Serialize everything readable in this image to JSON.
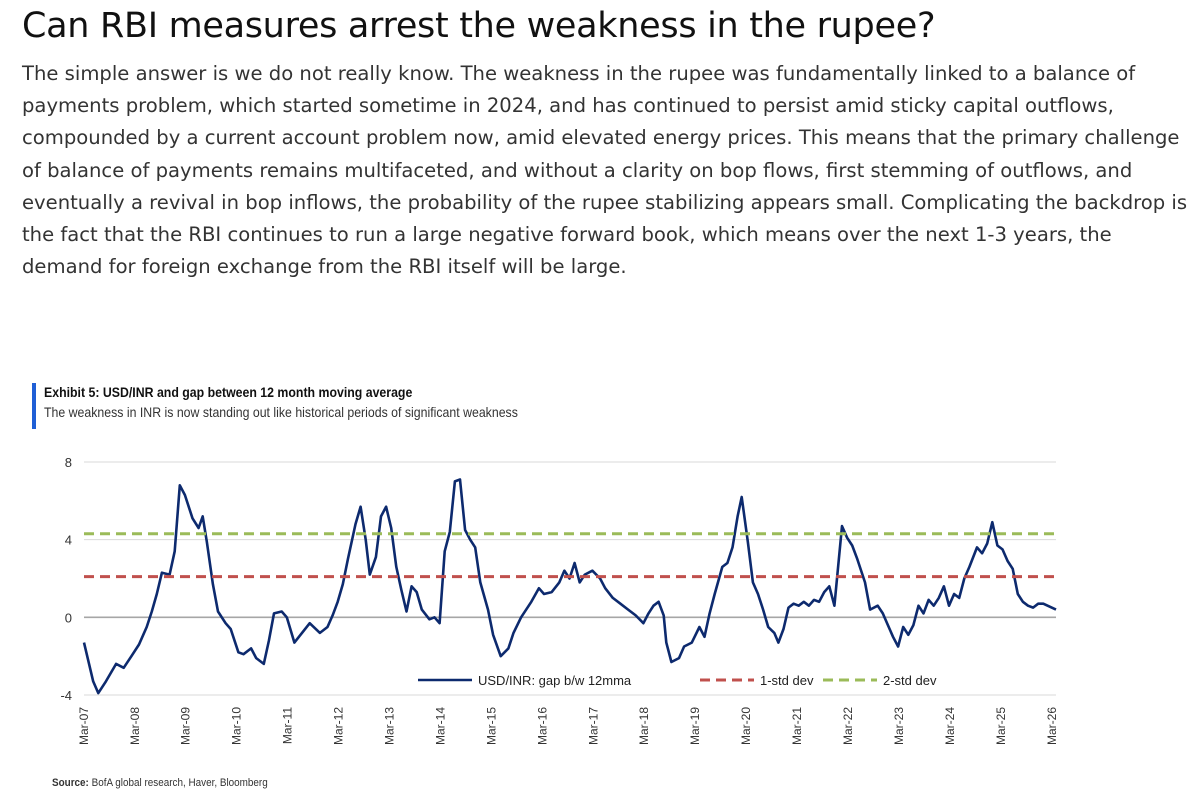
{
  "headline": "Can RBI measures arrest the weakness in the rupee?",
  "article": "The simple answer is we do not really know. The weakness in the rupee was fundamentally linked to a balance of payments problem, which started sometime in 2024, and has continued to persist amid sticky capital outflows, compounded by a current account problem now, amid elevated energy prices. This means that the primary challenge of balance of payments remains multifaceted, and without a clarity on bop flows, first stemming of outflows, and eventually a revival in bop inflows, the probability of the rupee stabilizing appears small. Complicating the backdrop is the fact that the RBI continues to run a large negative forward book, which means over the next 1-3 years, the demand for foreign exchange from the RBI itself will be large.",
  "exhibit": {
    "title": "Exhibit 5: USD/INR and gap between 12 month moving average",
    "subtitle": "The weakness in INR is now standing out like historical periods of significant weakness"
  },
  "source": {
    "label": "Source:",
    "text": "BofA global research, Haver, Bloomberg"
  },
  "colors": {
    "series": "#0d2a6e",
    "std1": "#c0504d",
    "std2": "#9bbb59",
    "accent": "#1f5fd6",
    "grid": "#d9d9d9",
    "zero_line": "#a6a6a6"
  },
  "chart_data": {
    "type": "line",
    "title": "Exhibit 5: USD/INR and gap between 12 month moving average",
    "xlabel": "",
    "ylabel": "",
    "ylim": [
      -4,
      8
    ],
    "yticks": [
      -4,
      0,
      4,
      8
    ],
    "grid": "horizontal",
    "legend_position": "bottom-right",
    "xticks": [
      "Mar-07",
      "Mar-08",
      "Mar-09",
      "Mar-10",
      "Mar-11",
      "Mar-12",
      "Mar-13",
      "Mar-14",
      "Mar-15",
      "Mar-16",
      "Mar-17",
      "Mar-18",
      "Mar-19",
      "Mar-20",
      "Mar-21",
      "Mar-22",
      "Mar-23",
      "Mar-24",
      "Mar-25",
      "Mar-26"
    ],
    "xtick_display": [
      "Mar-07",
      "Mar-08",
      "Mar-09",
      "Mar-10",
      "Mar-11",
      "Mar-12",
      "Mar-13",
      "Mar-14",
      "Mar-15",
      "Mar-16",
      "Mar-17",
      "Mar-18",
      "Mar-19",
      "Mar-20",
      "Mar-21",
      "Mar-22",
      "Mar-23",
      "Mar-24",
      "Mar-25",
      "Mar-26"
    ],
    "xlim": [
      2007.17,
      2026.25
    ],
    "series": [
      {
        "name": "USD/INR: gap b/w 12mma",
        "style": "solid",
        "points": [
          [
            2007.17,
            -1.3
          ],
          [
            2007.35,
            -3.3
          ],
          [
            2007.45,
            -3.9
          ],
          [
            2007.6,
            -3.3
          ],
          [
            2007.8,
            -2.4
          ],
          [
            2007.95,
            -2.6
          ],
          [
            2008.1,
            -2.0
          ],
          [
            2008.25,
            -1.4
          ],
          [
            2008.4,
            -0.5
          ],
          [
            2008.5,
            0.3
          ],
          [
            2008.6,
            1.2
          ],
          [
            2008.7,
            2.3
          ],
          [
            2008.85,
            2.2
          ],
          [
            2008.95,
            3.4
          ],
          [
            2009.05,
            6.8
          ],
          [
            2009.15,
            6.3
          ],
          [
            2009.3,
            5.1
          ],
          [
            2009.42,
            4.6
          ],
          [
            2009.5,
            5.2
          ],
          [
            2009.58,
            3.9
          ],
          [
            2009.7,
            1.7
          ],
          [
            2009.8,
            0.3
          ],
          [
            2009.95,
            -0.3
          ],
          [
            2010.05,
            -0.6
          ],
          [
            2010.2,
            -1.8
          ],
          [
            2010.3,
            -1.9
          ],
          [
            2010.45,
            -1.6
          ],
          [
            2010.55,
            -2.1
          ],
          [
            2010.7,
            -2.4
          ],
          [
            2010.8,
            -1.2
          ],
          [
            2010.9,
            0.2
          ],
          [
            2011.05,
            0.3
          ],
          [
            2011.15,
            0.0
          ],
          [
            2011.3,
            -1.3
          ],
          [
            2011.45,
            -0.8
          ],
          [
            2011.6,
            -0.3
          ],
          [
            2011.8,
            -0.8
          ],
          [
            2011.95,
            -0.5
          ],
          [
            2012.05,
            0.1
          ],
          [
            2012.15,
            0.8
          ],
          [
            2012.25,
            1.7
          ],
          [
            2012.35,
            3.0
          ],
          [
            2012.5,
            4.8
          ],
          [
            2012.6,
            5.7
          ],
          [
            2012.7,
            4.0
          ],
          [
            2012.78,
            2.2
          ],
          [
            2012.9,
            3.1
          ],
          [
            2013.0,
            5.2
          ],
          [
            2013.1,
            5.7
          ],
          [
            2013.2,
            4.6
          ],
          [
            2013.3,
            2.6
          ],
          [
            2013.4,
            1.4
          ],
          [
            2013.5,
            0.3
          ],
          [
            2013.6,
            1.6
          ],
          [
            2013.7,
            1.3
          ],
          [
            2013.8,
            0.4
          ],
          [
            2013.95,
            -0.1
          ],
          [
            2014.05,
            0.0
          ],
          [
            2014.15,
            -0.3
          ],
          [
            2014.25,
            3.4
          ],
          [
            2014.35,
            4.4
          ],
          [
            2014.45,
            7.0
          ],
          [
            2014.55,
            7.1
          ],
          [
            2014.65,
            4.5
          ],
          [
            2014.75,
            4.0
          ],
          [
            2014.85,
            3.6
          ],
          [
            2014.95,
            1.8
          ],
          [
            2015.1,
            0.4
          ],
          [
            2015.2,
            -0.9
          ],
          [
            2015.35,
            -2.0
          ],
          [
            2015.5,
            -1.6
          ],
          [
            2015.6,
            -0.8
          ],
          [
            2015.75,
            0.0
          ],
          [
            2015.95,
            0.8
          ],
          [
            2016.1,
            1.5
          ],
          [
            2016.2,
            1.2
          ],
          [
            2016.35,
            1.3
          ],
          [
            2016.5,
            1.8
          ],
          [
            2016.6,
            2.4
          ],
          [
            2016.7,
            2.0
          ],
          [
            2016.8,
            2.8
          ],
          [
            2016.9,
            1.8
          ],
          [
            2017.0,
            2.2
          ],
          [
            2017.15,
            2.4
          ],
          [
            2017.3,
            2.0
          ],
          [
            2017.4,
            1.5
          ],
          [
            2017.55,
            1.0
          ],
          [
            2017.7,
            0.7
          ],
          [
            2017.85,
            0.4
          ],
          [
            2018.0,
            0.1
          ],
          [
            2018.15,
            -0.3
          ],
          [
            2018.25,
            0.2
          ],
          [
            2018.35,
            0.6
          ],
          [
            2018.45,
            0.8
          ],
          [
            2018.55,
            0.1
          ],
          [
            2018.6,
            -1.3
          ],
          [
            2018.7,
            -2.3
          ],
          [
            2018.85,
            -2.1
          ],
          [
            2018.95,
            -1.5
          ],
          [
            2019.1,
            -1.3
          ],
          [
            2019.25,
            -0.5
          ],
          [
            2019.35,
            -1.0
          ],
          [
            2019.45,
            0.2
          ],
          [
            2019.55,
            1.2
          ],
          [
            2019.7,
            2.6
          ],
          [
            2019.8,
            2.8
          ],
          [
            2019.9,
            3.6
          ],
          [
            2020.0,
            5.2
          ],
          [
            2020.08,
            6.2
          ],
          [
            2020.2,
            3.9
          ],
          [
            2020.3,
            1.8
          ],
          [
            2020.4,
            1.2
          ],
          [
            2020.5,
            0.4
          ],
          [
            2020.6,
            -0.5
          ],
          [
            2020.72,
            -0.8
          ],
          [
            2020.8,
            -1.3
          ],
          [
            2020.9,
            -0.6
          ],
          [
            2021.0,
            0.5
          ],
          [
            2021.1,
            0.7
          ],
          [
            2021.2,
            0.6
          ],
          [
            2021.3,
            0.8
          ],
          [
            2021.4,
            0.6
          ],
          [
            2021.5,
            0.9
          ],
          [
            2021.6,
            0.8
          ],
          [
            2021.7,
            1.3
          ],
          [
            2021.8,
            1.6
          ],
          [
            2021.9,
            0.6
          ],
          [
            2022.05,
            4.7
          ],
          [
            2022.15,
            4.1
          ],
          [
            2022.25,
            3.7
          ],
          [
            2022.35,
            3.0
          ],
          [
            2022.5,
            1.8
          ],
          [
            2022.6,
            0.4
          ],
          [
            2022.75,
            0.6
          ],
          [
            2022.85,
            0.2
          ],
          [
            2022.95,
            -0.4
          ],
          [
            2023.05,
            -1.0
          ],
          [
            2023.15,
            -1.5
          ],
          [
            2023.25,
            -0.5
          ],
          [
            2023.35,
            -0.9
          ],
          [
            2023.45,
            -0.4
          ],
          [
            2023.55,
            0.6
          ],
          [
            2023.65,
            0.2
          ],
          [
            2023.75,
            0.9
          ],
          [
            2023.85,
            0.6
          ],
          [
            2023.95,
            1.0
          ],
          [
            2024.05,
            1.6
          ],
          [
            2024.15,
            0.6
          ],
          [
            2024.25,
            1.2
          ],
          [
            2024.35,
            1.0
          ],
          [
            2024.45,
            2.0
          ],
          [
            2024.55,
            2.6
          ],
          [
            2024.7,
            3.6
          ],
          [
            2024.8,
            3.3
          ],
          [
            2024.9,
            3.8
          ],
          [
            2025.0,
            4.9
          ],
          [
            2025.1,
            3.7
          ],
          [
            2025.2,
            3.5
          ],
          [
            2025.3,
            2.9
          ],
          [
            2025.4,
            2.5
          ],
          [
            2025.5,
            1.2
          ],
          [
            2025.6,
            0.8
          ],
          [
            2025.7,
            0.6
          ],
          [
            2025.8,
            0.5
          ],
          [
            2025.9,
            0.7
          ],
          [
            2026.0,
            0.7
          ],
          [
            2026.25,
            0.4
          ]
        ]
      },
      {
        "name": "1-std dev",
        "style": "dashed",
        "points": [
          [
            2007.17,
            2.1
          ],
          [
            2026.25,
            2.1
          ]
        ]
      },
      {
        "name": "2-std dev",
        "style": "dashed",
        "points": [
          [
            2007.17,
            4.3
          ],
          [
            2026.25,
            4.3
          ]
        ]
      }
    ]
  }
}
